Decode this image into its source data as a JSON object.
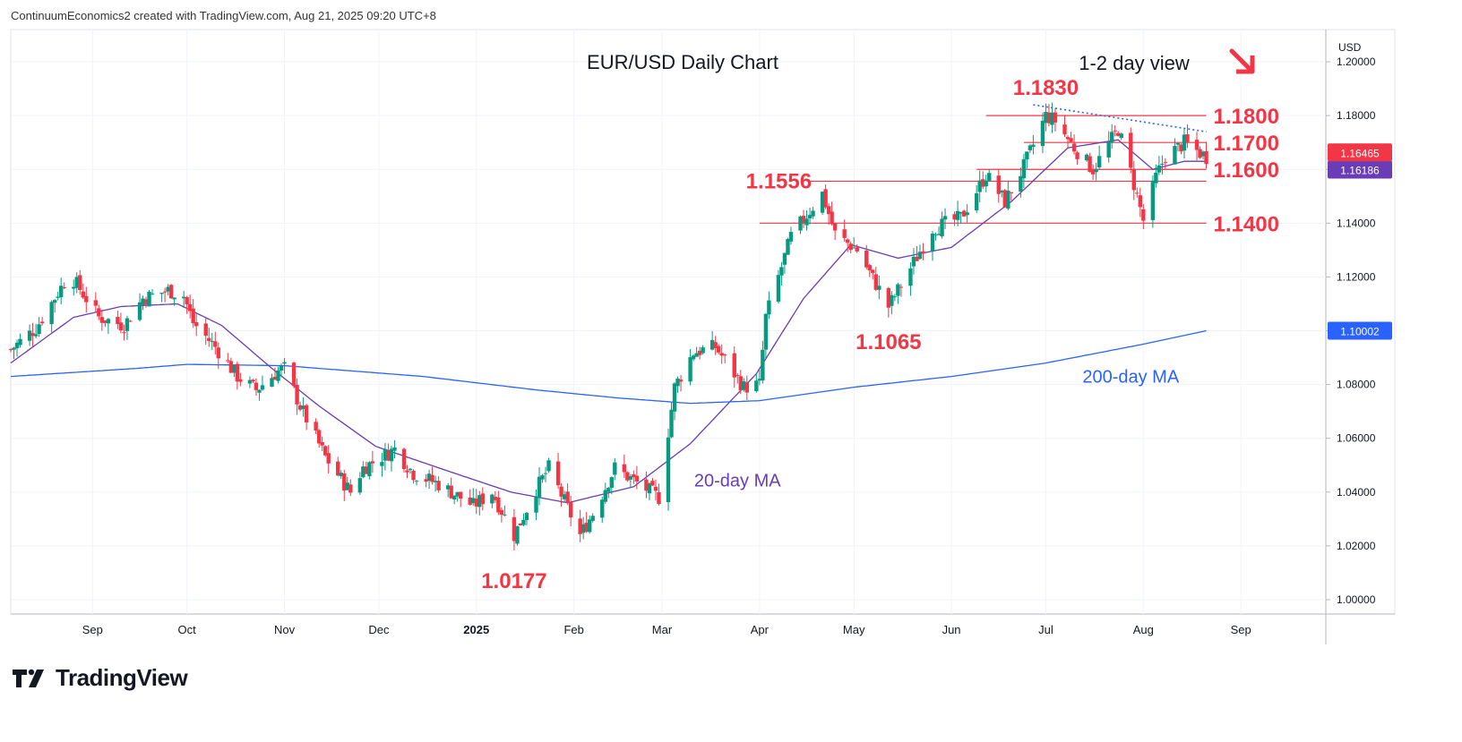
{
  "caption": "ContinuumEconomics2 created with TradingView.com, Aug 21, 2025 09:20 UTC+8",
  "brand": {
    "name": "TradingView"
  },
  "colors": {
    "up": "#089981",
    "down": "#f23645",
    "ma20": "#6a3cb5",
    "ma200": "#2962ff",
    "level": "#f23645",
    "trend": "#2962ff",
    "annot": "#f23645",
    "blue_label": "#2962ff",
    "purple_label": "#6a3cb5"
  },
  "chart_data": {
    "type": "candlestick",
    "title": "EUR/USD Daily Chart",
    "view_note": "1-2 day view",
    "view_arrow": "arrow-down-right-icon",
    "currency": "USD",
    "ylim": [
      0.994,
      1.212
    ],
    "y_ticks": [
      "1.20000",
      "1.18000",
      "1.16000",
      "1.14000",
      "1.12000",
      "1.10000",
      "1.08000",
      "1.06000",
      "1.04000",
      "1.02000",
      "1.00000"
    ],
    "x_ticks": [
      {
        "label": "Sep",
        "date": "2024-09-01",
        "bold": false
      },
      {
        "label": "Oct",
        "date": "2024-10-01",
        "bold": false
      },
      {
        "label": "Nov",
        "date": "2024-11-01",
        "bold": false
      },
      {
        "label": "Dec",
        "date": "2024-12-01",
        "bold": false
      },
      {
        "label": "2025",
        "date": "2025-01-01",
        "bold": true
      },
      {
        "label": "Feb",
        "date": "2025-02-01",
        "bold": false
      },
      {
        "label": "Mar",
        "date": "2025-03-01",
        "bold": false
      },
      {
        "label": "Apr",
        "date": "2025-04-01",
        "bold": false
      },
      {
        "label": "May",
        "date": "2025-05-01",
        "bold": false
      },
      {
        "label": "Jun",
        "date": "2025-06-01",
        "bold": false
      },
      {
        "label": "Jul",
        "date": "2025-07-01",
        "bold": false
      },
      {
        "label": "Aug",
        "date": "2025-08-01",
        "bold": false
      },
      {
        "label": "Sep",
        "date": "2025-09-01",
        "bold": false
      }
    ],
    "x_range": [
      "2024-08-06",
      "2025-09-28"
    ],
    "price_anchors": [
      [
        "2024-08-06",
        1.093
      ],
      [
        "2024-08-14",
        1.101
      ],
      [
        "2024-08-23",
        1.118
      ],
      [
        "2024-08-26",
        1.119
      ],
      [
        "2024-09-03",
        1.105
      ],
      [
        "2024-09-11",
        1.102
      ],
      [
        "2024-09-17",
        1.112
      ],
      [
        "2024-09-25",
        1.115
      ],
      [
        "2024-09-30",
        1.113
      ],
      [
        "2024-10-03",
        1.103
      ],
      [
        "2024-10-10",
        1.094
      ],
      [
        "2024-10-17",
        1.083
      ],
      [
        "2024-10-23",
        1.078
      ],
      [
        "2024-10-30",
        1.085
      ],
      [
        "2024-11-01",
        1.086
      ],
      [
        "2024-11-06",
        1.072
      ],
      [
        "2024-11-14",
        1.053
      ],
      [
        "2024-11-22",
        1.04
      ],
      [
        "2024-11-26",
        1.049
      ],
      [
        "2024-12-06",
        1.056
      ],
      [
        "2024-12-12",
        1.047
      ],
      [
        "2024-12-20",
        1.043
      ],
      [
        "2024-12-31",
        1.035
      ],
      [
        "2025-01-06",
        1.04
      ],
      [
        "2025-01-13",
        1.024
      ],
      [
        "2025-01-20",
        1.041
      ],
      [
        "2025-01-24",
        1.049
      ],
      [
        "2025-02-03",
        1.024
      ],
      [
        "2025-02-07",
        1.032
      ],
      [
        "2025-02-14",
        1.049
      ],
      [
        "2025-02-28",
        1.038
      ],
      [
        "2025-03-05",
        1.079
      ],
      [
        "2025-03-11",
        1.092
      ],
      [
        "2025-03-18",
        1.094
      ],
      [
        "2025-03-27",
        1.079
      ],
      [
        "2025-04-01",
        1.08
      ],
      [
        "2025-04-03",
        1.105
      ],
      [
        "2025-04-11",
        1.135
      ],
      [
        "2025-04-21",
        1.151
      ],
      [
        "2025-04-25",
        1.136
      ],
      [
        "2025-05-02",
        1.13
      ],
      [
        "2025-05-12",
        1.109
      ],
      [
        "2025-05-16",
        1.117
      ],
      [
        "2025-05-26",
        1.138
      ],
      [
        "2025-06-04",
        1.142
      ],
      [
        "2025-06-12",
        1.158
      ],
      [
        "2025-06-18",
        1.148
      ],
      [
        "2025-06-24",
        1.161
      ],
      [
        "2025-07-01",
        1.18
      ],
      [
        "2025-07-04",
        1.178
      ],
      [
        "2025-07-10",
        1.168
      ],
      [
        "2025-07-16",
        1.16
      ],
      [
        "2025-07-24",
        1.175
      ],
      [
        "2025-07-28",
        1.159
      ],
      [
        "2025-08-01",
        1.141
      ],
      [
        "2025-08-05",
        1.157
      ],
      [
        "2025-08-08",
        1.165
      ],
      [
        "2025-08-12",
        1.168
      ],
      [
        "2025-08-14",
        1.17
      ],
      [
        "2025-08-21",
        1.1646
      ]
    ],
    "series": [
      {
        "name": "20-day MA",
        "anchors": [
          [
            "2024-08-06",
            1.088
          ],
          [
            "2024-08-26",
            1.105
          ],
          [
            "2024-09-10",
            1.109
          ],
          [
            "2024-09-28",
            1.11
          ],
          [
            "2024-10-12",
            1.102
          ],
          [
            "2024-10-28",
            1.086
          ],
          [
            "2024-11-12",
            1.072
          ],
          [
            "2024-11-30",
            1.057
          ],
          [
            "2024-12-20",
            1.049
          ],
          [
            "2025-01-12",
            1.04
          ],
          [
            "2025-01-30",
            1.036
          ],
          [
            "2025-02-20",
            1.042
          ],
          [
            "2025-03-10",
            1.058
          ],
          [
            "2025-03-31",
            1.084
          ],
          [
            "2025-04-15",
            1.112
          ],
          [
            "2025-04-30",
            1.132
          ],
          [
            "2025-05-15",
            1.127
          ],
          [
            "2025-06-01",
            1.131
          ],
          [
            "2025-06-20",
            1.148
          ],
          [
            "2025-07-08",
            1.168
          ],
          [
            "2025-07-24",
            1.171
          ],
          [
            "2025-08-04",
            1.16
          ],
          [
            "2025-08-14",
            1.163
          ],
          [
            "2025-08-21",
            1.163
          ]
        ]
      },
      {
        "name": "200-day MA",
        "anchors": [
          [
            "2024-08-06",
            1.083
          ],
          [
            "2024-09-15",
            1.086
          ],
          [
            "2024-10-01",
            1.0875
          ],
          [
            "2024-11-01",
            1.087
          ],
          [
            "2024-12-15",
            1.083
          ],
          [
            "2025-01-20",
            1.078
          ],
          [
            "2025-02-15",
            1.075
          ],
          [
            "2025-03-10",
            1.073
          ],
          [
            "2025-04-01",
            1.074
          ],
          [
            "2025-05-01",
            1.079
          ],
          [
            "2025-06-01",
            1.083
          ],
          [
            "2025-07-01",
            1.088
          ],
          [
            "2025-08-01",
            1.095
          ],
          [
            "2025-08-21",
            1.1
          ]
        ]
      }
    ],
    "last_price": {
      "label": "1.16465",
      "value": 1.16465
    },
    "ma20_price": {
      "label": "1.16186",
      "value": 1.1619
    },
    "ma200_price": {
      "label": "1.10002",
      "value": 1.10002
    },
    "levels": [
      {
        "value": 1.18,
        "label": "1.1800",
        "from": "2025-06-12",
        "to": "2025-08-21"
      },
      {
        "value": 1.17,
        "label": "1.1700",
        "from": "2025-06-24",
        "to": "2025-08-21"
      },
      {
        "value": 1.16,
        "label": "1.1600",
        "from": "2025-06-09",
        "to": "2025-08-21"
      },
      {
        "value": 1.1556,
        "label": "",
        "from": "2025-04-16",
        "to": "2025-08-21"
      },
      {
        "value": 1.14,
        "label": "1.1400",
        "from": "2025-04-01",
        "to": "2025-08-21"
      }
    ],
    "trendline": {
      "from": [
        "2025-06-27",
        1.184
      ],
      "to": [
        "2025-08-21",
        1.174
      ]
    },
    "annotations": [
      {
        "text": "1.1830",
        "date": "2025-07-01",
        "value": 1.183,
        "anchor": "top"
      },
      {
        "text": "1.1556",
        "date": "2025-04-21",
        "value": 1.1556,
        "anchor": "left"
      },
      {
        "text": "1.1065",
        "date": "2025-05-12",
        "value": 1.1065,
        "anchor": "bottom"
      },
      {
        "text": "1.0177",
        "date": "2025-01-13",
        "value": 1.0177,
        "anchor": "bottom"
      }
    ],
    "ma_labels": [
      {
        "text": "20-day MA",
        "series": "20-day MA"
      },
      {
        "text": "200-day MA",
        "series": "200-day MA"
      }
    ]
  }
}
